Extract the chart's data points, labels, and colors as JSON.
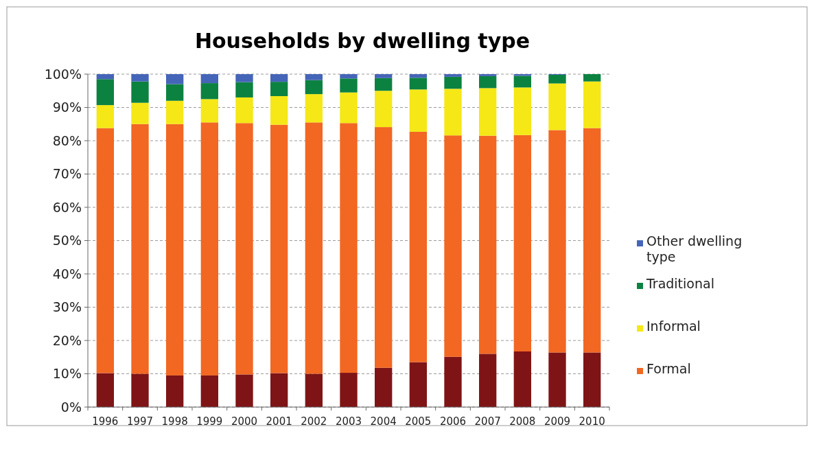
{
  "chart_data": {
    "type": "bar",
    "title": "Households by dwelling type",
    "stacked": true,
    "categories": [
      "1996",
      "1997",
      "1998",
      "1999",
      "2000",
      "2001",
      "2002",
      "2003",
      "2004",
      "2005",
      "2006",
      "2007",
      "2008",
      "2009",
      "2010"
    ],
    "series": [
      {
        "color": "#7f1416",
        "values": [
          10.2,
          10,
          9.5,
          9.5,
          9.8,
          10.2,
          10,
          10.3,
          11.8,
          13.5,
          15.1,
          16,
          16.7,
          16.4,
          16.4
        ]
      },
      {
        "name": "Formal",
        "color": "#f26722",
        "values": [
          73.6,
          75,
          75.5,
          76,
          75.5,
          74.6,
          75.5,
          75,
          72.3,
          69.2,
          66.5,
          65.5,
          65,
          66.8,
          67.4
        ]
      },
      {
        "name": "Informal",
        "color": "#f5e816",
        "values": [
          6.9,
          6.4,
          7,
          7,
          7.7,
          8.6,
          8.5,
          9.2,
          10.9,
          12.7,
          14,
          14.3,
          14.3,
          14,
          14
        ]
      },
      {
        "name": "Traditional",
        "color": "#0c8241",
        "values": [
          7.8,
          6.4,
          5,
          4.8,
          4.6,
          4.3,
          4.2,
          4.2,
          3.8,
          3.5,
          3.6,
          3.6,
          3.5,
          2.6,
          2.2
        ]
      },
      {
        "name": "Other dwelling type",
        "color": "#4565b8",
        "values": [
          1.5,
          2.2,
          3,
          2.7,
          2.4,
          2.3,
          1.8,
          1.3,
          1.2,
          1.1,
          0.8,
          0.6,
          0.5,
          0.2,
          0
        ]
      }
    ],
    "ylim": [
      0,
      100
    ],
    "yticks": [
      {
        "value": 0,
        "label": "0%"
      },
      {
        "value": 10,
        "label": "10%"
      },
      {
        "value": 20,
        "label": "20%"
      },
      {
        "value": 30,
        "label": "30%"
      },
      {
        "value": 40,
        "label": "40%"
      },
      {
        "value": 50,
        "label": "50%"
      },
      {
        "value": 60,
        "label": "60%"
      },
      {
        "value": 70,
        "label": "70%"
      },
      {
        "value": 80,
        "label": "80%"
      },
      {
        "value": 90,
        "label": "90%"
      },
      {
        "value": 100,
        "label": "100%"
      }
    ],
    "grid": "y",
    "legend": "right"
  }
}
